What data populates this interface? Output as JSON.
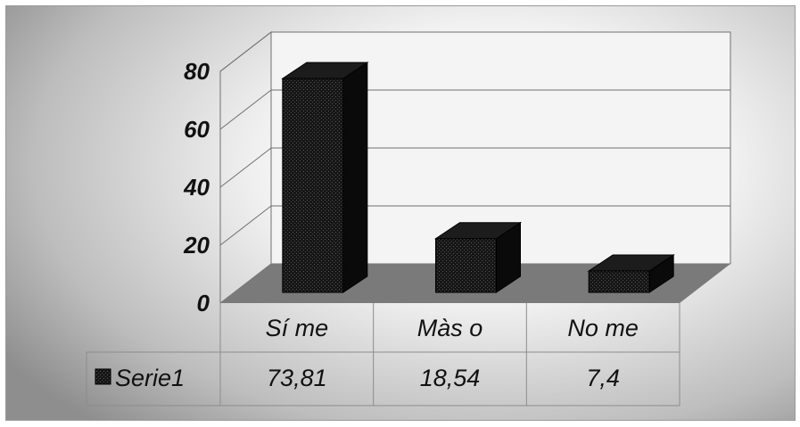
{
  "chart_data": {
    "type": "bar",
    "style": "3d-column",
    "categories": [
      "Sí me",
      "Màs o",
      "No me"
    ],
    "series": [
      {
        "name": "Serie1",
        "values": [
          73.81,
          18.54,
          7.4
        ],
        "value_labels": [
          "73,81",
          "18,54",
          "7,4"
        ]
      }
    ],
    "yticks": [
      "0",
      "20",
      "40",
      "60",
      "80"
    ],
    "ylim": [
      0,
      80
    ],
    "grid": true,
    "data_table": true,
    "colors": {
      "bar": "#141414",
      "floor": "#7a7a7a",
      "grid": "#707070",
      "walls": "#f4f4f4"
    }
  }
}
